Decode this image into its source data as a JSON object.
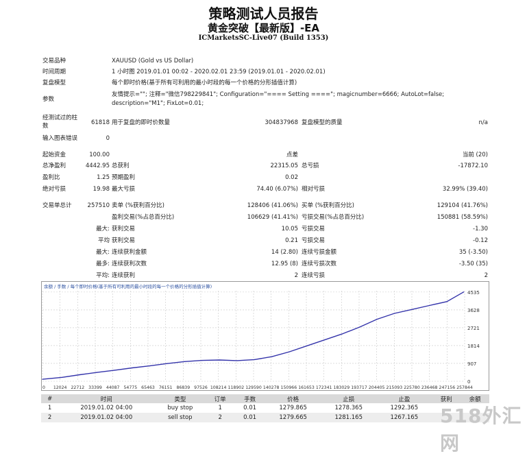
{
  "header": {
    "title": "策略测试人员报告",
    "subtitle": "黄金突破【最新版】-EA",
    "server": "ICMarketsSC-Live07 (Build 1353)"
  },
  "info": {
    "symbol_label": "交易品种",
    "symbol_value": "XAUUSD (Gold vs US Dollar)",
    "period_label": "时间周期",
    "period_value": "1 小时图 2019.01.01 00:02 - 2020.02.01 23:59 (2019.01.01 - 2020.02.01)",
    "model_label": "复盘模型",
    "model_value": "每个即时价格(基于所有可利用的最小时段的每一个价格的分形插值计算)",
    "params_label": "参数",
    "params_line1": "友情提示=\"\"; 注释=\"微信798229841\"; Configuration=\"==== Setting ====\"; magicnumber=6666; AutoLot=false;",
    "params_line2": "description=\"M1\"; FixLot=0.01;"
  },
  "ticks": {
    "bars_label_1": "经测试过的柱",
    "bars_label_2": "数",
    "bars_value": "61818",
    "ticks_label": "用于复盘的即时价数量",
    "ticks_value": "304837968",
    "quality_label": "复盘模型的质量",
    "quality_value": "n/a",
    "errors_label": "输入图表错误",
    "errors_value": "0"
  },
  "stats": {
    "deposit_label": "起始资金",
    "deposit_value": "100.00",
    "spread_label": "点差",
    "spread_value": "当前 (20)",
    "net_label": "总净盈利",
    "net_value": "4442.95",
    "gross_profit_label": "总获利",
    "gross_profit_value": "22315.05",
    "gross_loss_label": "总亏损",
    "gross_loss_value": "-17872.10",
    "pf_label": "盈利比",
    "pf_value": "1.25",
    "expected_label": "预期盈利",
    "expected_value": "0.02",
    "abs_dd_label": "绝对亏损",
    "abs_dd_value": "19.98",
    "max_dd_label": "最大亏损",
    "max_dd_value": "74.40 (6.07%)",
    "rel_dd_label": "相对亏损",
    "rel_dd_value": "32.99% (39.40)",
    "trades_label": "交易单总计",
    "trades_value": "257510",
    "short_label": "卖单 (%获利百分比)",
    "short_value": "128406 (41.06%)",
    "long_label": "买单 (%获利百分比)",
    "long_value": "129104 (41.76%)",
    "profit_trades_label": "盈利交易(%占总百分比)",
    "profit_trades_value": "106629 (41.41%)",
    "loss_trades_label": "亏损交易(%占总百分比)",
    "loss_trades_value": "150881 (58.59%)",
    "max_label": "最大:",
    "largest_profit_label": "获利交易",
    "largest_profit_value": "10.05",
    "largest_loss_label": "亏损交易",
    "largest_loss_value": "-1.30",
    "avg_label": "平均",
    "avg_profit_label": "获利交易",
    "avg_profit_value": "0.21",
    "avg_loss_label": "亏损交易",
    "avg_loss_value": "-0.12",
    "max2_label": "最大:",
    "cons_wins_money_label": "连续获利金额",
    "cons_wins_money_value": "14 (2.80)",
    "cons_loss_money_label": "连续亏损金额",
    "cons_loss_money_value": "35 (-3.50)",
    "most_label": "最多:",
    "cons_wins_count_label": "连续获利次数",
    "cons_wins_count_value": "12.95 (8)",
    "cons_loss_count_label": "连续亏损次数",
    "cons_loss_count_value": "-3.50 (35)",
    "avg2_label": "平均:",
    "avg_cons_wins_label": "连续获利",
    "avg_cons_wins_value": "2",
    "avg_cons_loss_label": "连续亏损",
    "avg_cons_loss_value": "2"
  },
  "chart_data": {
    "type": "line",
    "legend_text": "余额 / 手数 / 每个即时价格(基于所有可利用的最小时段的每一个价格的分形插值计算)",
    "x_ticks": [
      "0",
      "12024",
      "22712",
      "33399",
      "44087",
      "54775",
      "65463",
      "76151",
      "86839",
      "97526",
      "108214",
      "118902",
      "129590",
      "140278",
      "150966",
      "161653",
      "172341",
      "183029",
      "193717",
      "204405",
      "215093",
      "225780",
      "236468",
      "247156",
      "257844"
    ],
    "y_ticks": [
      "4535",
      "3628",
      "2721",
      "1814",
      "907",
      "0"
    ],
    "ylim": [
      0,
      4600
    ],
    "xlim": [
      0,
      258000
    ],
    "grid": true,
    "series": [
      {
        "color": "#3333aa",
        "x": [
          0,
          12024,
          22712,
          33399,
          44087,
          54775,
          65463,
          76151,
          86839,
          97526,
          108214,
          118902,
          129590,
          140278,
          150966,
          161653,
          172341,
          183029,
          193717,
          204405,
          215093,
          225780,
          236468,
          247156,
          257510
        ],
        "values": [
          100,
          200,
          330,
          450,
          560,
          680,
          780,
          900,
          1000,
          1060,
          1080,
          1050,
          1100,
          1250,
          1500,
          1800,
          2100,
          2400,
          2750,
          3150,
          3450,
          3650,
          3850,
          4050,
          4540
        ]
      }
    ]
  },
  "trades": {
    "headers": [
      "#",
      "时间",
      "类型",
      "订单",
      "手数",
      "价格",
      "止损",
      "止盈",
      "获利",
      "余额"
    ],
    "rows": [
      [
        "1",
        "2019.01.02 04:00",
        "buy stop",
        "1",
        "0.01",
        "1279.865",
        "1278.365",
        "1292.365",
        "",
        ""
      ],
      [
        "2",
        "2019.01.02 04:00",
        "sell stop",
        "2",
        "0.01",
        "1279.665",
        "1281.165",
        "1267.165",
        "",
        ""
      ]
    ]
  },
  "watermark": "518外汇网"
}
